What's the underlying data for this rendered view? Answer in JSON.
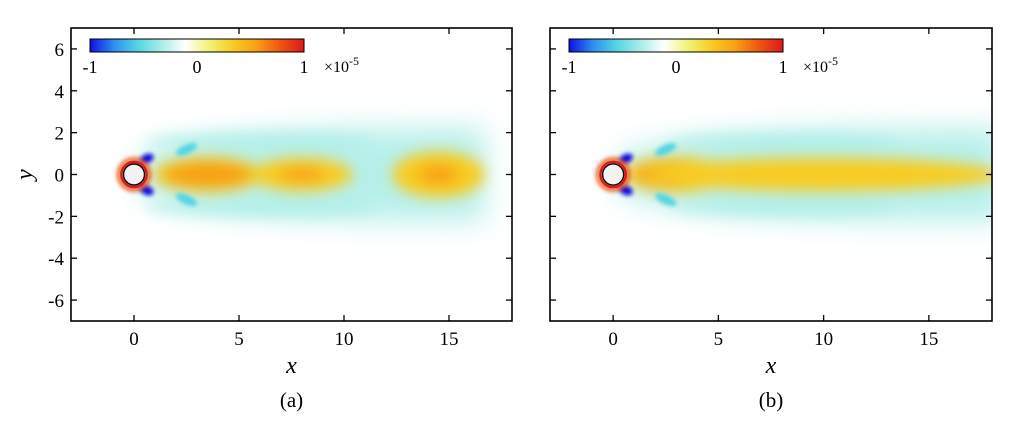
{
  "colors": {
    "colormap": [
      "#1010e0",
      "#2e8ef0",
      "#55d5e4",
      "#a9ece6",
      "#ffffff",
      "#f1f377",
      "#f8cc22",
      "#f8a014",
      "#ee5512",
      "#dd1a1a"
    ],
    "cylinder_fill": "#f2f2f2"
  },
  "chart_data": [
    {
      "type": "heatmap",
      "panel_label": "(a)",
      "xlabel": "x",
      "ylabel": "y",
      "xlim": [
        -3,
        18
      ],
      "ylim": [
        -7,
        7
      ],
      "xticks": [
        0,
        5,
        10,
        15
      ],
      "xtick_labels": [
        "0",
        "5",
        "10",
        "15"
      ],
      "yticks": [
        6,
        4,
        2,
        0,
        -2,
        -4,
        -6
      ],
      "ytick_labels": [
        "6",
        "4",
        "2",
        "0",
        "-2",
        "-4",
        "-6"
      ],
      "grid": false,
      "colorbar": {
        "placement": "top-left inside axes",
        "range": [
          -1,
          1
        ],
        "tick_labels": [
          "-1",
          "0",
          "1"
        ],
        "multiplier_base": "×10",
        "multiplier_exponent": "-5"
      },
      "cylinder": {
        "center": [
          0,
          0
        ],
        "diameter": 1
      },
      "field": {
        "positive_core": [
          {
            "x": 3.5,
            "y": 0,
            "sx": 2.6,
            "sy": 0.85,
            "value": 0.65
          },
          {
            "x": 8.0,
            "y": 0,
            "sx": 2.4,
            "sy": 0.8,
            "value": 0.55
          },
          {
            "x": 14.5,
            "y": 0,
            "sx": 2.2,
            "sy": 1.1,
            "value": 0.45
          }
        ],
        "negative_shear_layers": [
          {
            "x": 6.0,
            "y": 1.55,
            "value": -0.15
          },
          {
            "x": 6.0,
            "y": -1.55,
            "value": -0.15
          }
        ],
        "near_wall_minima": [
          {
            "x": 0.6,
            "y": 0.75,
            "value": -1
          },
          {
            "x": 0.6,
            "y": -0.75,
            "value": -1
          },
          {
            "x": 2.5,
            "y": 1.2,
            "value": -0.6
          },
          {
            "x": 2.5,
            "y": -1.2,
            "value": -0.6
          }
        ]
      }
    },
    {
      "type": "heatmap",
      "panel_label": "(b)",
      "xlabel": "x",
      "ylabel": "",
      "xlim": [
        -3,
        18
      ],
      "ylim": [
        -7,
        7
      ],
      "xticks": [
        0,
        5,
        10,
        15
      ],
      "xtick_labels": [
        "0",
        "5",
        "10",
        "15"
      ],
      "yticks": [
        6,
        4,
        2,
        0,
        -2,
        -4,
        -6
      ],
      "ytick_labels": [],
      "grid": false,
      "colorbar": {
        "placement": "top-left inside axes",
        "range": [
          -1,
          1
        ],
        "tick_labels": [
          "-1",
          "0",
          "1"
        ],
        "multiplier_base": "×10",
        "multiplier_exponent": "-5"
      },
      "cylinder": {
        "center": [
          0,
          0
        ],
        "diameter": 1
      },
      "field": {
        "positive_core": [
          {
            "x": 3.0,
            "y": 0,
            "sx": 2.5,
            "sy": 0.85,
            "value": 0.6
          },
          {
            "x": 10.0,
            "y": 0,
            "sx": 8.5,
            "sy": 0.8,
            "value": 0.4
          }
        ],
        "negative_shear_layers": [
          {
            "x": 8.0,
            "y": 1.5,
            "value": -0.15
          },
          {
            "x": 8.0,
            "y": -1.5,
            "value": -0.15
          }
        ],
        "near_wall_minima": [
          {
            "x": 0.6,
            "y": 0.75,
            "value": -1
          },
          {
            "x": 0.6,
            "y": -0.75,
            "value": -1
          },
          {
            "x": 2.5,
            "y": 1.2,
            "value": -0.6
          },
          {
            "x": 2.5,
            "y": -1.2,
            "value": -0.6
          }
        ]
      }
    }
  ]
}
